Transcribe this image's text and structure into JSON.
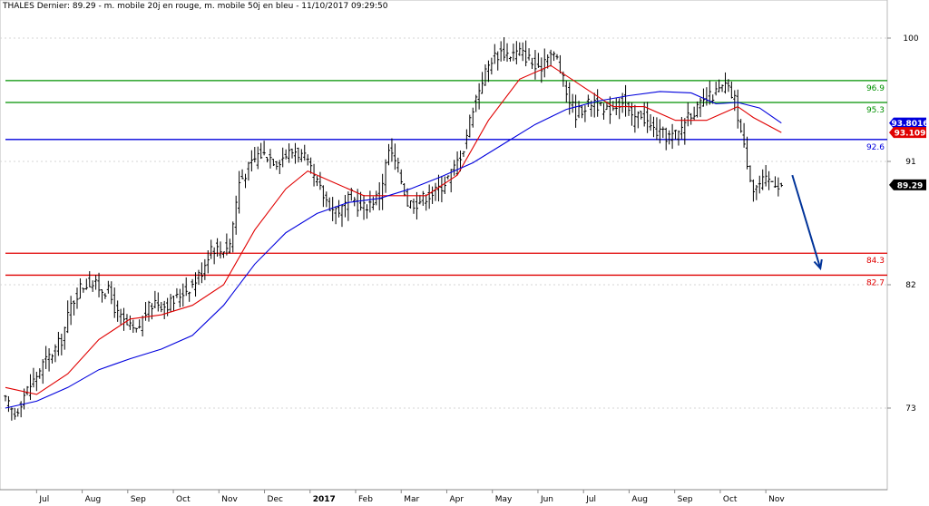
{
  "chart_data": {
    "type": "line",
    "subtype": "ohlc-bars-with-moving-averages",
    "title": "THALES Dernier: 89.29 - m. mobile 20j en rouge, m. mobile 50j en bleu - 11/10/2017 09:29:50",
    "ylim": [
      66,
      103
    ],
    "grid": true,
    "y_ticks": [
      {
        "value": 100,
        "label": "100"
      },
      {
        "value": 91,
        "label": "91"
      },
      {
        "value": 82,
        "label": "82"
      },
      {
        "value": 73,
        "label": "73"
      }
    ],
    "x_labels": [
      "Jul",
      "Aug",
      "Sep",
      "Oct",
      "Nov",
      "Dec",
      "2017",
      "Feb",
      "Mar",
      "Apr",
      "May",
      "Jun",
      "Jul",
      "Aug",
      "Sep",
      "Oct",
      "Nov"
    ],
    "price_anchors": [
      [
        0,
        73.5
      ],
      [
        3,
        72.5
      ],
      [
        6,
        74.0
      ],
      [
        9,
        75.0
      ],
      [
        12,
        76.2
      ],
      [
        15,
        77.0
      ],
      [
        18,
        78.0
      ],
      [
        21,
        80.5
      ],
      [
        24,
        81.8
      ],
      [
        27,
        82.2
      ],
      [
        30,
        81.8
      ],
      [
        33,
        81.5
      ],
      [
        36,
        79.8
      ],
      [
        39,
        79.0
      ],
      [
        42,
        78.5
      ],
      [
        45,
        80.0
      ],
      [
        48,
        80.8
      ],
      [
        51,
        80.5
      ],
      [
        54,
        80.8
      ],
      [
        57,
        81.5
      ],
      [
        60,
        82.0
      ],
      [
        63,
        83.0
      ],
      [
        66,
        84.8
      ],
      [
        69,
        84.5
      ],
      [
        72,
        85.0
      ],
      [
        75,
        89.5
      ],
      [
        78,
        90.5
      ],
      [
        81,
        91.5
      ],
      [
        84,
        91.5
      ],
      [
        87,
        91.0
      ],
      [
        90,
        91.5
      ],
      [
        93,
        91.8
      ],
      [
        96,
        91.2
      ],
      [
        99,
        89.8
      ],
      [
        102,
        88.5
      ],
      [
        105,
        87.5
      ],
      [
        108,
        87.5
      ],
      [
        111,
        88.5
      ],
      [
        114,
        87.5
      ],
      [
        117,
        88.0
      ],
      [
        120,
        88.5
      ],
      [
        123,
        91.8
      ],
      [
        126,
        90.5
      ],
      [
        129,
        88.0
      ],
      [
        132,
        88.0
      ],
      [
        135,
        88.5
      ],
      [
        138,
        88.8
      ],
      [
        141,
        89.5
      ],
      [
        144,
        90.5
      ],
      [
        147,
        92.0
      ],
      [
        150,
        95.0
      ],
      [
        153,
        97.0
      ],
      [
        156,
        98.5
      ],
      [
        159,
        99.0
      ],
      [
        162,
        98.8
      ],
      [
        165,
        99.0
      ],
      [
        168,
        98.5
      ],
      [
        171,
        97.5
      ],
      [
        174,
        99.0
      ],
      [
        177,
        98.5
      ],
      [
        180,
        96.0
      ],
      [
        183,
        94.5
      ],
      [
        186,
        95.0
      ],
      [
        189,
        95.5
      ],
      [
        192,
        94.5
      ],
      [
        195,
        95.0
      ],
      [
        198,
        95.5
      ],
      [
        201,
        94.0
      ],
      [
        204,
        94.5
      ],
      [
        207,
        93.5
      ],
      [
        210,
        93.0
      ],
      [
        213,
        92.8
      ],
      [
        216,
        93.0
      ],
      [
        219,
        94.5
      ],
      [
        222,
        94.8
      ],
      [
        225,
        95.5
      ],
      [
        228,
        96.0
      ],
      [
        231,
        96.5
      ],
      [
        234,
        95.5
      ],
      [
        237,
        92.0
      ],
      [
        240,
        89.0
      ],
      [
        243,
        89.5
      ],
      [
        246,
        89.6
      ],
      [
        249,
        89.29
      ]
    ],
    "series": [
      {
        "name": "m. mobile 20j",
        "color": "#e00000",
        "points": [
          [
            0,
            74.5
          ],
          [
            10,
            74.0
          ],
          [
            20,
            75.5
          ],
          [
            30,
            78.0
          ],
          [
            40,
            79.5
          ],
          [
            50,
            79.8
          ],
          [
            60,
            80.5
          ],
          [
            70,
            82.0
          ],
          [
            80,
            86.0
          ],
          [
            90,
            89.0
          ],
          [
            97,
            90.3
          ],
          [
            105,
            89.5
          ],
          [
            115,
            88.5
          ],
          [
            125,
            88.5
          ],
          [
            135,
            88.5
          ],
          [
            145,
            90.0
          ],
          [
            155,
            94.0
          ],
          [
            165,
            97.0
          ],
          [
            175,
            98.0
          ],
          [
            185,
            96.5
          ],
          [
            195,
            95.0
          ],
          [
            205,
            95.0
          ],
          [
            215,
            94.0
          ],
          [
            225,
            94.0
          ],
          [
            235,
            95.0
          ],
          [
            240,
            94.2
          ],
          [
            249,
            93.109
          ]
        ],
        "last_label": "93.109"
      },
      {
        "name": "m. mobile 50j",
        "color": "#0000dd",
        "points": [
          [
            0,
            73.0
          ],
          [
            10,
            73.5
          ],
          [
            20,
            74.5
          ],
          [
            30,
            75.8
          ],
          [
            40,
            76.6
          ],
          [
            50,
            77.3
          ],
          [
            60,
            78.3
          ],
          [
            70,
            80.5
          ],
          [
            80,
            83.5
          ],
          [
            90,
            85.8
          ],
          [
            100,
            87.2
          ],
          [
            110,
            88.0
          ],
          [
            120,
            88.3
          ],
          [
            130,
            89.0
          ],
          [
            140,
            89.9
          ],
          [
            150,
            90.9
          ],
          [
            160,
            92.3
          ],
          [
            170,
            93.7
          ],
          [
            180,
            94.8
          ],
          [
            190,
            95.4
          ],
          [
            200,
            95.8
          ],
          [
            210,
            96.1
          ],
          [
            220,
            96.0
          ],
          [
            228,
            95.2
          ],
          [
            235,
            95.3
          ],
          [
            242,
            94.9
          ],
          [
            249,
            93.8016
          ]
        ],
        "last_label": "93.8016"
      }
    ],
    "last_price_label": "89.29",
    "horizontal_levels": [
      {
        "value": 96.9,
        "label": "96.9",
        "color": "#009000"
      },
      {
        "value": 95.3,
        "label": "95.3",
        "color": "#009000"
      },
      {
        "value": 92.6,
        "label": "92.6",
        "color": "#0000dd"
      },
      {
        "value": 84.3,
        "label": "84.3",
        "color": "#e00000"
      },
      {
        "value": 82.7,
        "label": "82.7",
        "color": "#e00000"
      }
    ],
    "forecast_arrow": {
      "from": [
        249,
        90.0
      ],
      "to": [
        258,
        83.2
      ],
      "color": "#003399"
    }
  }
}
